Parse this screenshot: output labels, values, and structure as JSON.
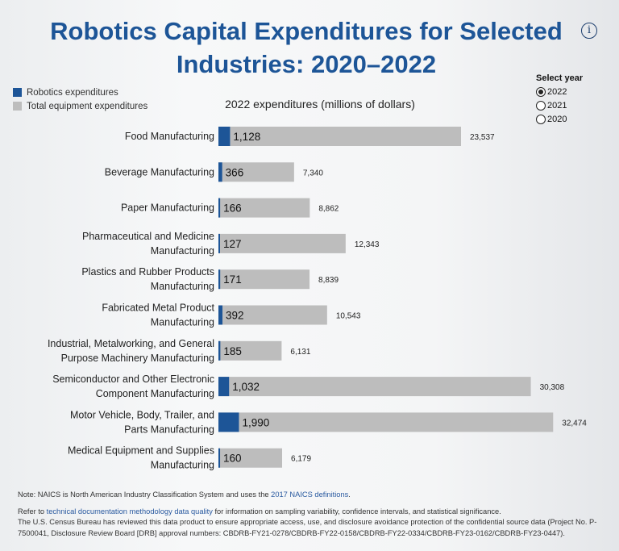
{
  "title": "Robotics Capital Expenditures for Selected Industries: 2020–2022",
  "info_icon": "i",
  "legend": [
    {
      "label": "Robotics expenditures",
      "color": "#1d5597"
    },
    {
      "label": "Total equipment expenditures",
      "color": "#bdbdbd"
    }
  ],
  "year_selector": {
    "label": "Select year",
    "options": [
      "2022",
      "2021",
      "2020"
    ],
    "selected": "2022"
  },
  "chart_data": {
    "type": "bar",
    "orientation": "horizontal",
    "title": "2022 expenditures (millions of dollars)",
    "categories": [
      "Food Manufacturing",
      "Beverage Manufacturing",
      "Paper Manufacturing",
      "Pharmaceutical and Medicine Manufacturing",
      "Plastics and Rubber Products Manufacturing",
      "Fabricated Metal Product Manufacturing",
      "Industrial, Metalworking, and General Purpose Machinery Manufacturing",
      "Semiconductor and Other Electronic Component Manufacturing",
      "Motor Vehicle, Body, Trailer, and Parts Manufacturing",
      "Medical Equipment and Supplies Manufacturing"
    ],
    "category_lines": [
      [
        "Food Manufacturing"
      ],
      [
        "Beverage Manufacturing"
      ],
      [
        "Paper Manufacturing"
      ],
      [
        "Pharmaceutical and Medicine",
        "Manufacturing"
      ],
      [
        "Plastics and Rubber Products",
        "Manufacturing"
      ],
      [
        "Fabricated Metal Product",
        "Manufacturing"
      ],
      [
        "Industrial, Metalworking, and General",
        "Purpose Machinery Manufacturing"
      ],
      [
        "Semiconductor and Other Electronic",
        "Component Manufacturing"
      ],
      [
        "Motor Vehicle, Body, Trailer, and",
        "Parts Manufacturing"
      ],
      [
        "Medical Equipment and Supplies",
        "Manufacturing"
      ]
    ],
    "series": [
      {
        "name": "Robotics expenditures",
        "color": "#1d5597",
        "values": [
          1128,
          366,
          166,
          127,
          171,
          392,
          185,
          1032,
          1990,
          160
        ],
        "labels": [
          "1,128",
          "366",
          "166",
          "127",
          "171",
          "392",
          "185",
          "1,032",
          "1,990",
          "160"
        ]
      },
      {
        "name": "Total equipment expenditures",
        "color": "#bdbdbd",
        "values": [
          23537,
          7340,
          8862,
          12343,
          8839,
          10543,
          6131,
          30308,
          32474,
          6179
        ],
        "labels": [
          "23,537",
          "7,340",
          "8,862",
          "12,343",
          "8,839",
          "10,543",
          "6,131",
          "30,308",
          "32,474",
          "6,179"
        ]
      }
    ]
  },
  "footer": {
    "note_prefix": "Note: NAICS is North American Industry Classification System and uses the ",
    "note_link": "2017 NAICS definitions",
    "note_suffix": ".",
    "refer_prefix": "Refer to ",
    "refer_link": "technical documentation methodology data quality",
    "refer_suffix": " for information on sampling variability, confidence intervals, and statistical significance.",
    "disclosure": "The U.S. Census Bureau has reviewed this data product to ensure appropriate access, use, and disclosure avoidance protection of the confidential source data (Project No. P-7500041, Disclosure Review Board [DRB] approval numbers: CBDRB-FY21-0278/CBDRB-FY22-0158/CBDRB-FY22-0334/CBDRB-FY23-0162/CBDRB-FY23-0447)."
  }
}
